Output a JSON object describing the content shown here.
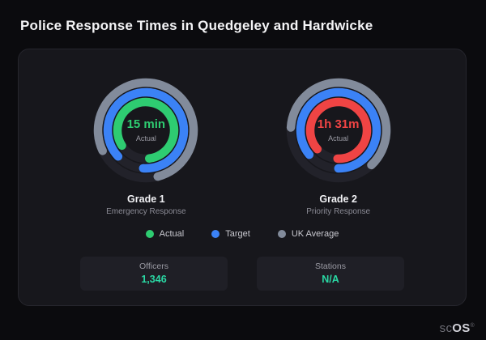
{
  "page": {
    "title": "Police Response Times in Quedgeley and Hardwicke"
  },
  "chart_data": {
    "type": "gauge",
    "title": "Police Response Times in Quedgeley and Hardwicke",
    "legend_position": "bottom-center",
    "gauges": [
      {
        "title": "Grade 1",
        "subtitle": "Emergency Response",
        "center_value": "15 min",
        "center_label": "Actual",
        "value_color": "#2ecc71",
        "rings": [
          {
            "name": "UK Average",
            "color": "#828b9b",
            "fraction": 0.78
          },
          {
            "name": "Target",
            "color": "#3b82f6",
            "fraction": 0.88
          },
          {
            "name": "Actual",
            "color": "#2ecc71",
            "fraction": 0.82
          }
        ]
      },
      {
        "title": "Grade 2",
        "subtitle": "Priority Response",
        "center_value": "1h 31m",
        "center_label": "Actual",
        "value_color": "#ef4444",
        "rings": [
          {
            "name": "UK Average",
            "color": "#828b9b",
            "fraction": 0.62
          },
          {
            "name": "Target",
            "color": "#3b82f6",
            "fraction": 0.86
          },
          {
            "name": "Actual",
            "color": "#ef4444",
            "fraction": 0.87
          }
        ]
      }
    ],
    "legend": [
      {
        "label": "Actual",
        "color": "#2ecc71"
      },
      {
        "label": "Target",
        "color": "#3b82f6"
      },
      {
        "label": "UK Average",
        "color": "#828b9b"
      }
    ]
  },
  "stats": [
    {
      "label": "Officers",
      "value": "1,346",
      "value_color": "#2ad8a4"
    },
    {
      "label": "Stations",
      "value": "N/A",
      "value_color": "#2ad8a4"
    }
  ],
  "brand": {
    "prefix": "sc",
    "suffix": "OS",
    "reg": "®"
  }
}
